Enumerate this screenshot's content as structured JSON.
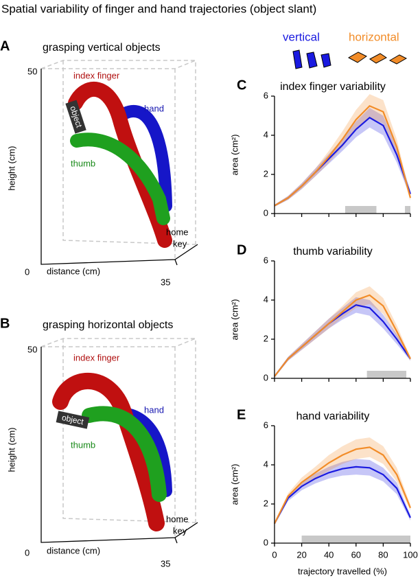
{
  "title": "Spatial variability of finger and hand trajectories (object slant)",
  "panels_3d": [
    {
      "letter": "A",
      "title": "grasping vertical objects",
      "y_top": "50",
      "y_bottom": "0",
      "x_end": "35",
      "y_label": "height (cm)",
      "x_label": "distance (cm)",
      "index": "index finger",
      "hand": "hand",
      "object": "object",
      "thumb": "thumb",
      "home": "home",
      "key": "key"
    },
    {
      "letter": "B",
      "title": "grasping horizontal objects",
      "y_top": "50",
      "y_bottom": "0",
      "x_end": "35",
      "y_label": "height (cm)",
      "x_label": "distance (cm)",
      "index": "index finger",
      "hand": "hand",
      "object": "object",
      "thumb": "thumb",
      "home": "home",
      "key": "key"
    }
  ],
  "chart_data": [
    {
      "type": "line",
      "letter": "C",
      "title": "index finger variability",
      "ylabel": "area (cm²)",
      "x": [
        0,
        10,
        20,
        30,
        40,
        50,
        60,
        70,
        80,
        90,
        100
      ],
      "series": [
        {
          "name": "vertical",
          "color": "#1a1ae0",
          "values": [
            0.4,
            0.8,
            1.4,
            2.1,
            2.8,
            3.5,
            4.3,
            4.9,
            4.5,
            3.0,
            1.0
          ],
          "errors": [
            0.05,
            0.1,
            0.15,
            0.2,
            0.25,
            0.3,
            0.4,
            0.5,
            0.5,
            0.4,
            0.15
          ]
        },
        {
          "name": "horizontal",
          "color": "#f28c28",
          "values": [
            0.4,
            0.8,
            1.4,
            2.1,
            2.9,
            3.8,
            4.8,
            5.5,
            5.2,
            3.4,
            0.8
          ],
          "errors": [
            0.05,
            0.1,
            0.15,
            0.2,
            0.3,
            0.4,
            0.5,
            0.6,
            0.6,
            0.4,
            0.15
          ]
        }
      ],
      "significant": [
        [
          52,
          75
        ],
        [
          96,
          100
        ]
      ],
      "xlim": [
        0,
        100
      ],
      "xticks": [
        0,
        20,
        40,
        60,
        80,
        100
      ],
      "ylim": [
        0,
        6
      ],
      "yticks": [
        0,
        2,
        4,
        6
      ]
    },
    {
      "type": "line",
      "letter": "D",
      "title": "thumb variability",
      "ylabel": "area (cm²)",
      "x": [
        0,
        10,
        20,
        30,
        40,
        50,
        60,
        70,
        80,
        90,
        100
      ],
      "series": [
        {
          "name": "vertical",
          "color": "#1a1ae0",
          "values": [
            0.1,
            1.0,
            1.6,
            2.2,
            2.8,
            3.3,
            3.75,
            3.6,
            2.9,
            2.0,
            1.0
          ],
          "errors": [
            0.05,
            0.1,
            0.15,
            0.2,
            0.25,
            0.3,
            0.4,
            0.4,
            0.35,
            0.25,
            0.1
          ]
        },
        {
          "name": "horizontal",
          "color": "#f28c28",
          "values": [
            0.1,
            1.0,
            1.6,
            2.2,
            2.8,
            3.4,
            4.0,
            4.25,
            3.7,
            2.4,
            1.0
          ],
          "errors": [
            0.05,
            0.1,
            0.15,
            0.2,
            0.25,
            0.3,
            0.4,
            0.45,
            0.4,
            0.3,
            0.1
          ]
        }
      ],
      "significant": [
        [
          68,
          97
        ]
      ],
      "xlim": [
        0,
        100
      ],
      "xticks": [
        0,
        20,
        40,
        60,
        80,
        100
      ],
      "ylim": [
        0,
        6
      ],
      "yticks": [
        0,
        2,
        4,
        6
      ]
    },
    {
      "type": "line",
      "letter": "E",
      "title": "hand variability",
      "ylabel": "area (cm²)",
      "xlabel": "trajectory travelled (%)",
      "xtick_labels": true,
      "x": [
        0,
        10,
        20,
        30,
        40,
        50,
        60,
        70,
        80,
        90,
        100
      ],
      "series": [
        {
          "name": "vertical",
          "color": "#1a1ae0",
          "values": [
            1.0,
            2.3,
            2.9,
            3.3,
            3.6,
            3.8,
            3.9,
            3.85,
            3.5,
            2.8,
            1.3
          ],
          "errors": [
            0.05,
            0.15,
            0.2,
            0.25,
            0.3,
            0.35,
            0.4,
            0.4,
            0.35,
            0.3,
            0.15
          ]
        },
        {
          "name": "horizontal",
          "color": "#f28c28",
          "values": [
            1.0,
            2.4,
            3.1,
            3.6,
            4.1,
            4.5,
            4.8,
            4.9,
            4.5,
            3.5,
            1.8
          ],
          "errors": [
            0.05,
            0.15,
            0.25,
            0.3,
            0.4,
            0.45,
            0.5,
            0.5,
            0.45,
            0.35,
            0.15
          ]
        }
      ],
      "significant": [
        [
          20,
          100
        ]
      ],
      "xlim": [
        0,
        100
      ],
      "xticks": [
        0,
        20,
        40,
        60,
        80,
        100
      ],
      "ylim": [
        0,
        6
      ],
      "yticks": [
        0,
        2,
        4,
        6
      ]
    }
  ]
}
